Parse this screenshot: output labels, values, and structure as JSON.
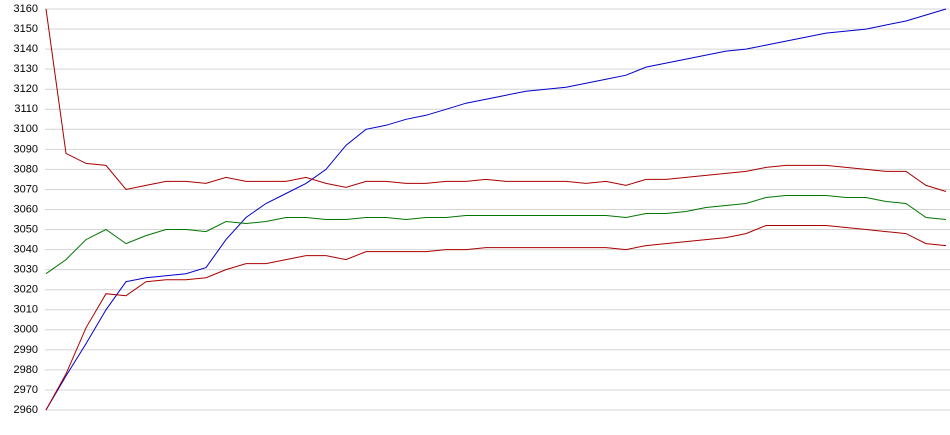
{
  "chart_data": {
    "type": "line",
    "categories": [
      null,
      null,
      null,
      null,
      null,
      null,
      null,
      null,
      null,
      null,
      null,
      null,
      null,
      null,
      null,
      null,
      null,
      null,
      null,
      null,
      null,
      null,
      null,
      null,
      null,
      null,
      null,
      null,
      null,
      null,
      null,
      null,
      null,
      null,
      null,
      null,
      null,
      null,
      null,
      null,
      null,
      null,
      null,
      null,
      null,
      null
    ],
    "series": [
      {
        "color": "#0000cc",
        "values": [
          2960,
          2977,
          2993,
          3010,
          3024,
          3026,
          3027,
          3028,
          3031,
          3045,
          3056,
          3063,
          3068,
          3073,
          3080,
          3092,
          3100,
          3102,
          3105,
          3107,
          3110,
          3113,
          3115,
          3117,
          3119,
          3120,
          3121,
          3123,
          3125,
          3127,
          3131,
          3133,
          3135,
          3137,
          3139,
          3140,
          3142,
          3144,
          3146,
          3148,
          3149,
          3150,
          3152,
          3154,
          3157,
          3160
        ]
      },
      {
        "color": "#aa0000",
        "values": [
          3160,
          3088,
          3083,
          3082,
          3070,
          3072,
          3074,
          3074,
          3073,
          3076,
          3074,
          3074,
          3074,
          3076,
          3073,
          3071,
          3074,
          3074,
          3073,
          3073,
          3074,
          3074,
          3075,
          3074,
          3074,
          3074,
          3074,
          3073,
          3074,
          3072,
          3075,
          3075,
          3076,
          3077,
          3078,
          3079,
          3081,
          3082,
          3082,
          3082,
          3081,
          3080,
          3079,
          3079,
          3072,
          3069
        ]
      },
      {
        "color": "#007700",
        "values": [
          3028,
          3035,
          3045,
          3050,
          3043,
          3047,
          3050,
          3050,
          3049,
          3054,
          3053,
          3054,
          3056,
          3056,
          3055,
          3055,
          3056,
          3056,
          3055,
          3056,
          3056,
          3057,
          3057,
          3057,
          3057,
          3057,
          3057,
          3057,
          3057,
          3056,
          3058,
          3058,
          3059,
          3061,
          3062,
          3063,
          3066,
          3067,
          3067,
          3067,
          3066,
          3066,
          3064,
          3063,
          3056,
          3055
        ]
      },
      {
        "color": "#aa0000",
        "values": [
          2960,
          2978,
          3001,
          3018,
          3017,
          3024,
          3025,
          3025,
          3026,
          3030,
          3033,
          3033,
          3035,
          3037,
          3037,
          3035,
          3039,
          3039,
          3039,
          3039,
          3040,
          3040,
          3041,
          3041,
          3041,
          3041,
          3041,
          3041,
          3041,
          3040,
          3042,
          3043,
          3044,
          3045,
          3046,
          3048,
          3052,
          3052,
          3052,
          3052,
          3051,
          3050,
          3049,
          3048,
          3043,
          3042
        ]
      }
    ],
    "ylim": [
      2960,
      3160
    ],
    "yticks": [
      2960,
      2970,
      2980,
      2990,
      3000,
      3010,
      3020,
      3030,
      3040,
      3050,
      3060,
      3070,
      3080,
      3090,
      3100,
      3110,
      3120,
      3130,
      3140,
      3150,
      3160
    ],
    "grid": true
  }
}
